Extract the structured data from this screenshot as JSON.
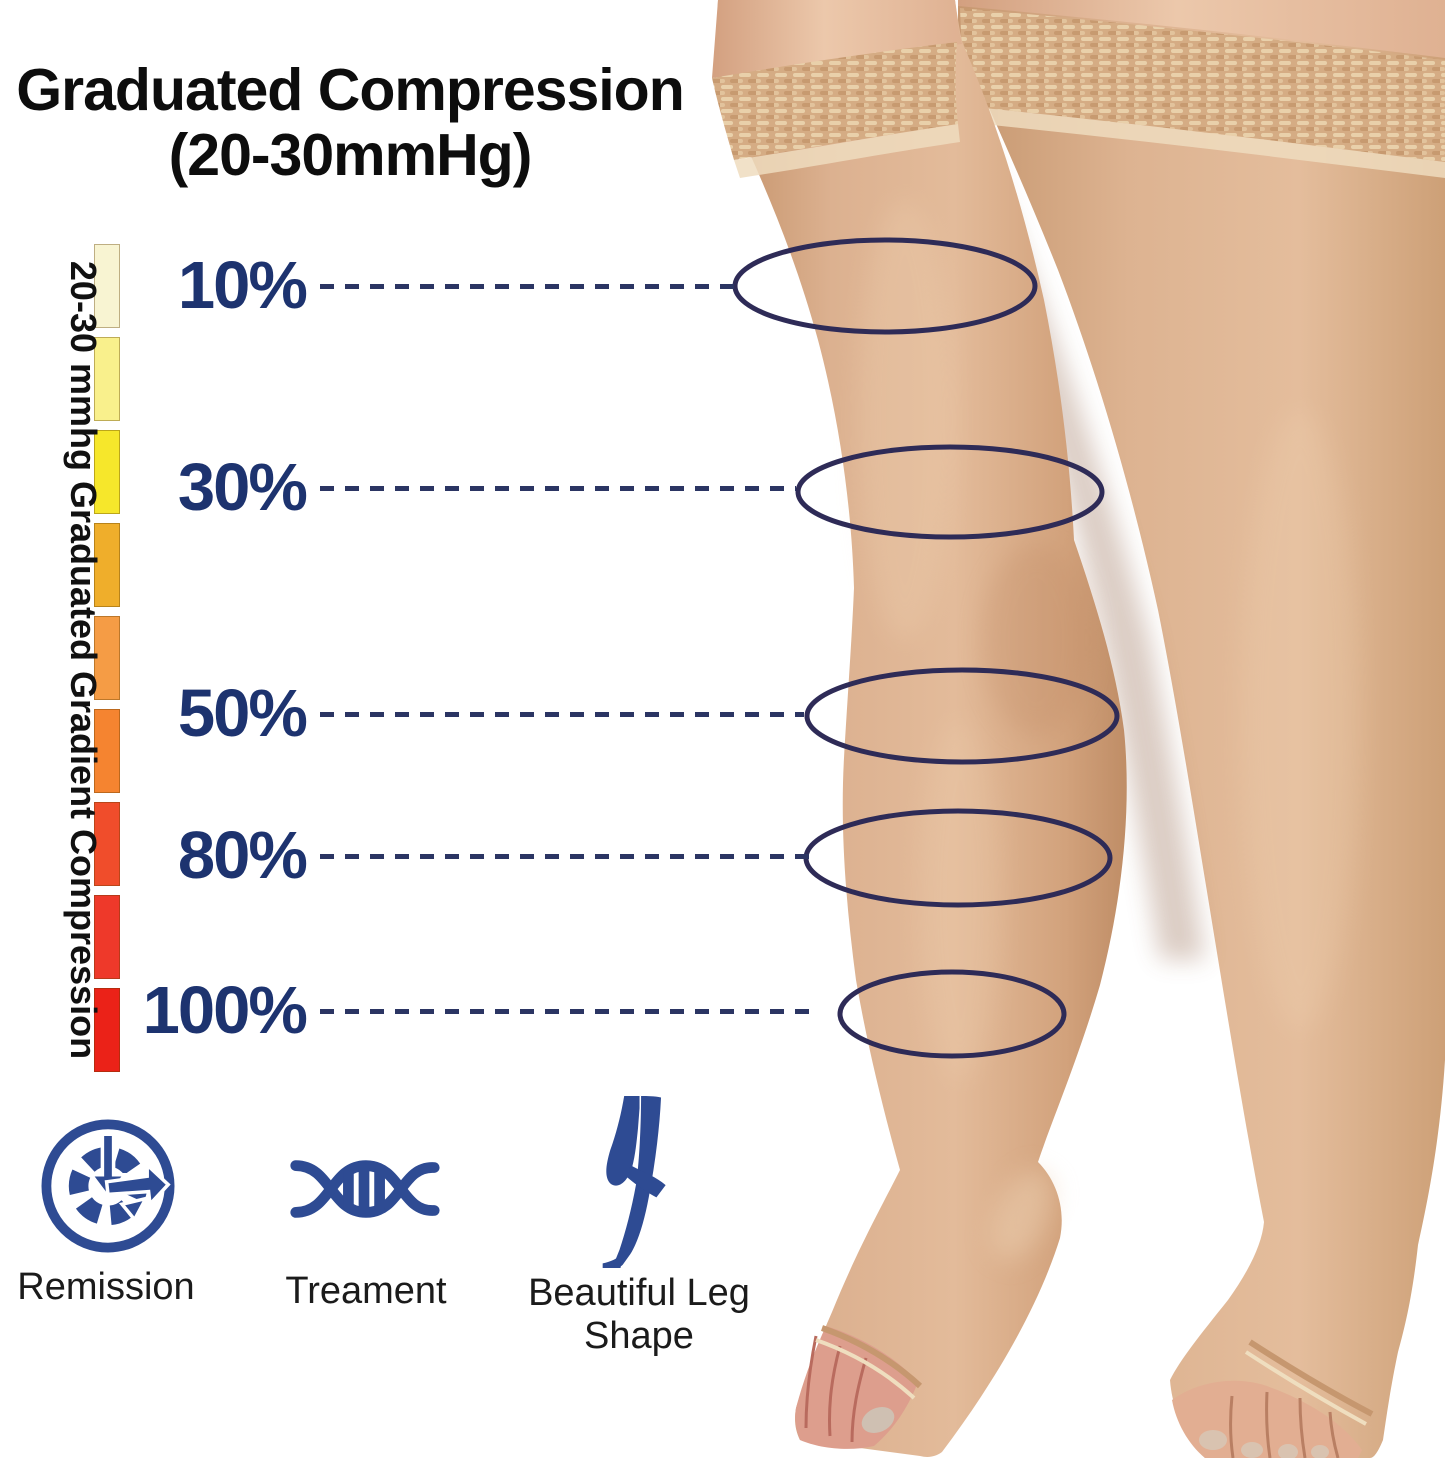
{
  "title": {
    "line1": "Graduated Compression",
    "line2": "(20-30mmHg)"
  },
  "scale_bar": {
    "label": "20-30 mmhg Graduated Gradient Compression",
    "colors": [
      "#f8f4d2",
      "#f9f08c",
      "#f6e72b",
      "#efae2b",
      "#f59c45",
      "#f58430",
      "#f04d2b",
      "#ee392a",
      "#eb2218"
    ]
  },
  "levels": [
    {
      "label": "10%"
    },
    {
      "label": "30%"
    },
    {
      "label": "50%"
    },
    {
      "label": "80%"
    },
    {
      "label": "100%"
    }
  ],
  "features": [
    {
      "label": "Remission",
      "icon": "clock-history-icon"
    },
    {
      "label": "Treament",
      "icon": "dna-icon"
    },
    {
      "label": "Beautiful Leg Shape",
      "icon": "leg-silhouette-icon"
    }
  ],
  "colors": {
    "navy": "#1d336f",
    "ellipse": "#2e2b57",
    "dash": "#2b3563",
    "icon": "#2e4b93",
    "title": "#0d0d0d"
  }
}
